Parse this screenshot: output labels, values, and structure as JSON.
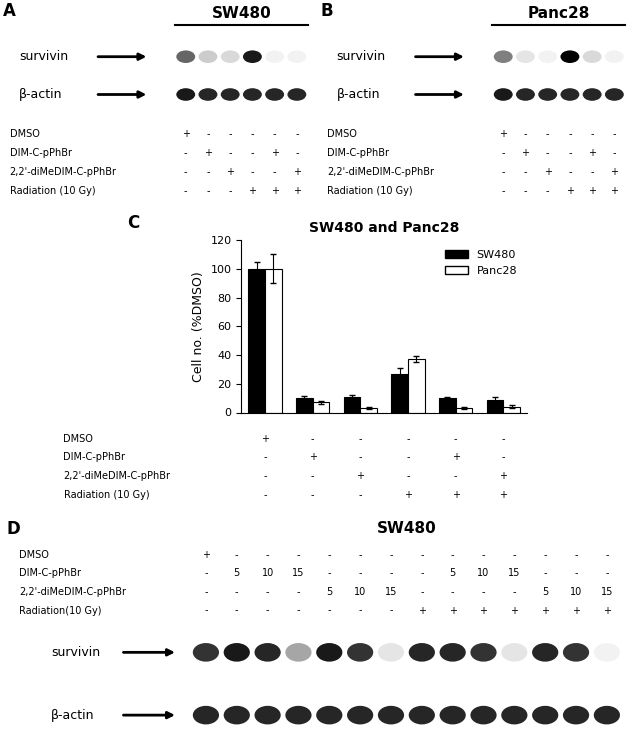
{
  "chart_data": {
    "type": "bar",
    "title": "SW480 and Panc28",
    "y_label": "Cell no. (%DMSO)",
    "categories": [
      null,
      null,
      null,
      null,
      null,
      null
    ],
    "series": [
      {
        "name": "SW480",
        "color": "#000000",
        "values": [
          100,
          10,
          11,
          27,
          10,
          9
        ],
        "errors": [
          5,
          1.5,
          1.5,
          4,
          1,
          2
        ]
      },
      {
        "name": "Panc28",
        "color": "#ffffff",
        "values": [
          100,
          7,
          3,
          37,
          3,
          4
        ],
        "errors": [
          10,
          1,
          0.5,
          2,
          0.5,
          1
        ]
      }
    ],
    "treatments": [
      {
        "name": "DMSO",
        "marks": [
          "+",
          "-",
          "-",
          "-",
          "-",
          "-"
        ]
      },
      {
        "name": "DIM-C-pPhBr",
        "marks": [
          "-",
          "+",
          "-",
          "-",
          "+",
          "-"
        ]
      },
      {
        "name": "2,2'-diMeDIM-C-pPhBr",
        "marks": [
          "-",
          "-",
          "+",
          "-",
          "-",
          "+"
        ]
      },
      {
        "name": "Radiation (10 Gy)",
        "marks": [
          "-",
          "-",
          "-",
          "+",
          "+",
          "+"
        ]
      }
    ],
    "ylim": [
      0,
      120
    ],
    "yticks": [
      0,
      20,
      40,
      60,
      80,
      100,
      120
    ],
    "legend": "upper right",
    "tick_labels": "y"
  },
  "chart_panel_label": "C",
  "blots": [
    {
      "panel_label": "A",
      "title": "SW480",
      "treatments": [
        {
          "name": "DMSO",
          "marks": [
            "+",
            "-",
            "-",
            "-",
            "-",
            "-"
          ]
        },
        {
          "name": "DIM-C-pPhBr",
          "marks": [
            "-",
            "+",
            "-",
            "-",
            "+",
            "-"
          ]
        },
        {
          "name": "2,2'-diMeDIM-C-pPhBr",
          "marks": [
            "-",
            "-",
            "+",
            "-",
            "-",
            "+"
          ]
        },
        {
          "name": "Radiation (10 Gy)",
          "marks": [
            "-",
            "-",
            "-",
            "+",
            "+",
            "+"
          ]
        }
      ],
      "bands": [
        {
          "name": "survivin",
          "intensities": [
            0.6,
            0.2,
            0.15,
            0.9,
            0.05,
            0.05
          ]
        },
        {
          "name": "β-actin",
          "intensities": [
            0.9,
            0.85,
            0.85,
            0.85,
            0.85,
            0.85
          ]
        }
      ]
    },
    {
      "panel_label": "B",
      "title": "Panc28",
      "treatments": [
        {
          "name": "DMSO",
          "marks": [
            "+",
            "-",
            "-",
            "-",
            "-",
            "-"
          ]
        },
        {
          "name": "DIM-C-pPhBr",
          "marks": [
            "-",
            "+",
            "-",
            "-",
            "+",
            "-"
          ]
        },
        {
          "name": "2,2'-diMeDIM-C-pPhBr",
          "marks": [
            "-",
            "-",
            "+",
            "-",
            "-",
            "+"
          ]
        },
        {
          "name": "Radiation (10 Gy)",
          "marks": [
            "-",
            "-",
            "-",
            "+",
            "+",
            "+"
          ]
        }
      ],
      "bands": [
        {
          "name": "survivin",
          "intensities": [
            0.5,
            0.1,
            0.05,
            1.0,
            0.15,
            0.05
          ]
        },
        {
          "name": "β-actin",
          "intensities": [
            0.9,
            0.85,
            0.85,
            0.85,
            0.85,
            0.85
          ]
        }
      ]
    },
    {
      "panel_label": "D",
      "title": "SW480",
      "treatments": [
        {
          "name": "DMSO",
          "marks": [
            "+",
            "-",
            "-",
            "-",
            "-",
            "-",
            "-",
            "-",
            "-",
            "-",
            "-",
            "-",
            "-",
            "-"
          ]
        },
        {
          "name": "DIM-C-pPhBr",
          "marks": [
            "-",
            "5",
            "10",
            "15",
            "-",
            "-",
            "-",
            "-",
            "5",
            "10",
            "15",
            "-",
            "-",
            "-"
          ]
        },
        {
          "name": "2,2'-diMeDIM-C-pPhBr",
          "marks": [
            "-",
            "-",
            "-",
            "-",
            "5",
            "10",
            "15",
            "-",
            "-",
            "-",
            "-",
            "5",
            "10",
            "15"
          ]
        },
        {
          "name": "Radiation(10 Gy)",
          "marks": [
            "-",
            "-",
            "-",
            "-",
            "-",
            "-",
            "-",
            "+",
            "+",
            "+",
            "+",
            "+",
            "+",
            "+"
          ]
        }
      ],
      "bands": [
        {
          "name": "survivin",
          "intensities": [
            0.8,
            0.9,
            0.85,
            0.35,
            0.9,
            0.8,
            0.1,
            0.85,
            0.85,
            0.8,
            0.1,
            0.85,
            0.8,
            0.05
          ]
        },
        {
          "name": "β-actin",
          "intensities": [
            0.85,
            0.85,
            0.85,
            0.85,
            0.85,
            0.85,
            0.85,
            0.85,
            0.85,
            0.85,
            0.85,
            0.85,
            0.85,
            0.85
          ]
        }
      ]
    }
  ]
}
